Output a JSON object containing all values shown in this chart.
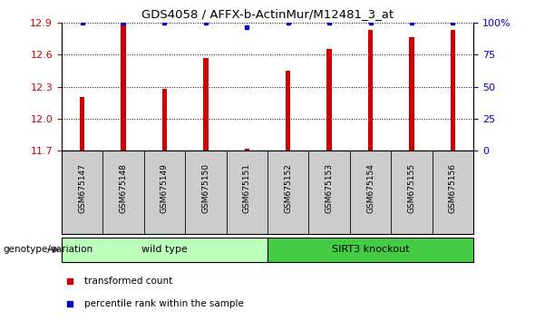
{
  "title": "GDS4058 / AFFX-b-ActinMur/M12481_3_at",
  "samples": [
    "GSM675147",
    "GSM675148",
    "GSM675149",
    "GSM675150",
    "GSM675151",
    "GSM675152",
    "GSM675153",
    "GSM675154",
    "GSM675155",
    "GSM675156"
  ],
  "transformed_counts": [
    12.2,
    12.9,
    12.28,
    12.57,
    11.72,
    12.45,
    12.65,
    12.83,
    12.76,
    12.83
  ],
  "percentile_ranks": [
    100,
    100,
    100,
    100,
    96,
    100,
    100,
    100,
    100,
    100
  ],
  "percentile_shown": [
    true,
    true,
    true,
    true,
    true,
    true,
    true,
    true,
    true,
    true
  ],
  "groups": [
    {
      "label": "wild type",
      "start": 0,
      "end": 5,
      "color": "#bbffbb"
    },
    {
      "label": "SIRT3 knockout",
      "start": 5,
      "end": 10,
      "color": "#44cc44"
    }
  ],
  "ylim_left": [
    11.7,
    12.9
  ],
  "ylim_right": [
    0,
    100
  ],
  "yticks_left": [
    11.7,
    12.0,
    12.3,
    12.6,
    12.9
  ],
  "yticks_right": [
    0,
    25,
    50,
    75,
    100
  ],
  "ytick_labels_right": [
    "0",
    "25",
    "50",
    "75",
    "100%"
  ],
  "bar_color": "#cc0000",
  "percentile_color": "#0000cc",
  "bar_width": 0.12,
  "grid_color": "#000000",
  "plot_bg": "#ffffff",
  "tick_area_bg": "#cccccc",
  "legend_items": [
    {
      "label": "transformed count",
      "color": "#cc0000"
    },
    {
      "label": "percentile rank within the sample",
      "color": "#0000cc"
    }
  ],
  "genotype_label": "genotype/variation",
  "ylabel_left_color": "#cc0000",
  "ylabel_right_color": "#0000cc",
  "figsize": [
    5.9,
    3.54
  ],
  "dpi": 100
}
